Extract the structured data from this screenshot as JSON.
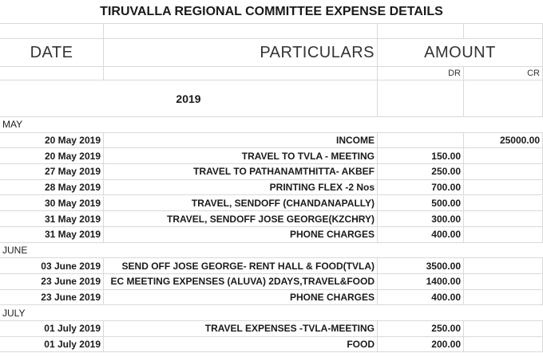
{
  "title": "TIRUVALLA REGIONAL COMMITTEE EXPENSE DETAILS",
  "headers": {
    "date": "DATE",
    "particulars": "PARTICULARS",
    "amount": "AMOUNT",
    "dr": "DR",
    "cr": "CR"
  },
  "year": "2019",
  "rows": [
    {
      "month": "MAY"
    },
    {
      "date": "20 May 2019",
      "particulars": "INCOME",
      "cr": "25000.00"
    },
    {
      "date": "20 May 2019",
      "particulars": "TRAVEL TO TVLA - MEETING",
      "dr": "150.00"
    },
    {
      "date": "27 May 2019",
      "particulars": "TRAVEL TO PATHANAMTHITTA- AKBEF",
      "dr": "250.00"
    },
    {
      "date": "28 May 2019",
      "particulars": "PRINTING FLEX -2 Nos",
      "dr": "700.00"
    },
    {
      "date": "30 May 2019",
      "particulars": "TRAVEL, SENDOFF (CHANDANAPALLY)",
      "dr": "500.00"
    },
    {
      "date": "31 May 2019",
      "particulars": "TRAVEL, SENDOFF JOSE GEORGE(KZCHRY)",
      "dr": "300.00"
    },
    {
      "date": "31 May 2019",
      "particulars": "PHONE CHARGES",
      "dr": "400.00"
    },
    {
      "month": "JUNE"
    },
    {
      "date": "03 June 2019",
      "particulars": "SEND OFF JOSE GEORGE- RENT HALL & FOOD(TVLA)",
      "dr": "3500.00"
    },
    {
      "date": "23 June 2019",
      "particulars": "EC MEETING EXPENSES (ALUVA) 2DAYS,TRAVEL&FOOD",
      "dr": "1400.00"
    },
    {
      "date": "23 June 2019",
      "particulars": "PHONE CHARGES",
      "dr": "400.00"
    },
    {
      "month": "JULY"
    },
    {
      "date": "01 July 2019",
      "particulars": "TRAVEL EXPENSES -TVLA-MEETING",
      "dr": "250.00"
    },
    {
      "date": "01 July 2019",
      "particulars": "FOOD",
      "dr": "200.00"
    }
  ]
}
